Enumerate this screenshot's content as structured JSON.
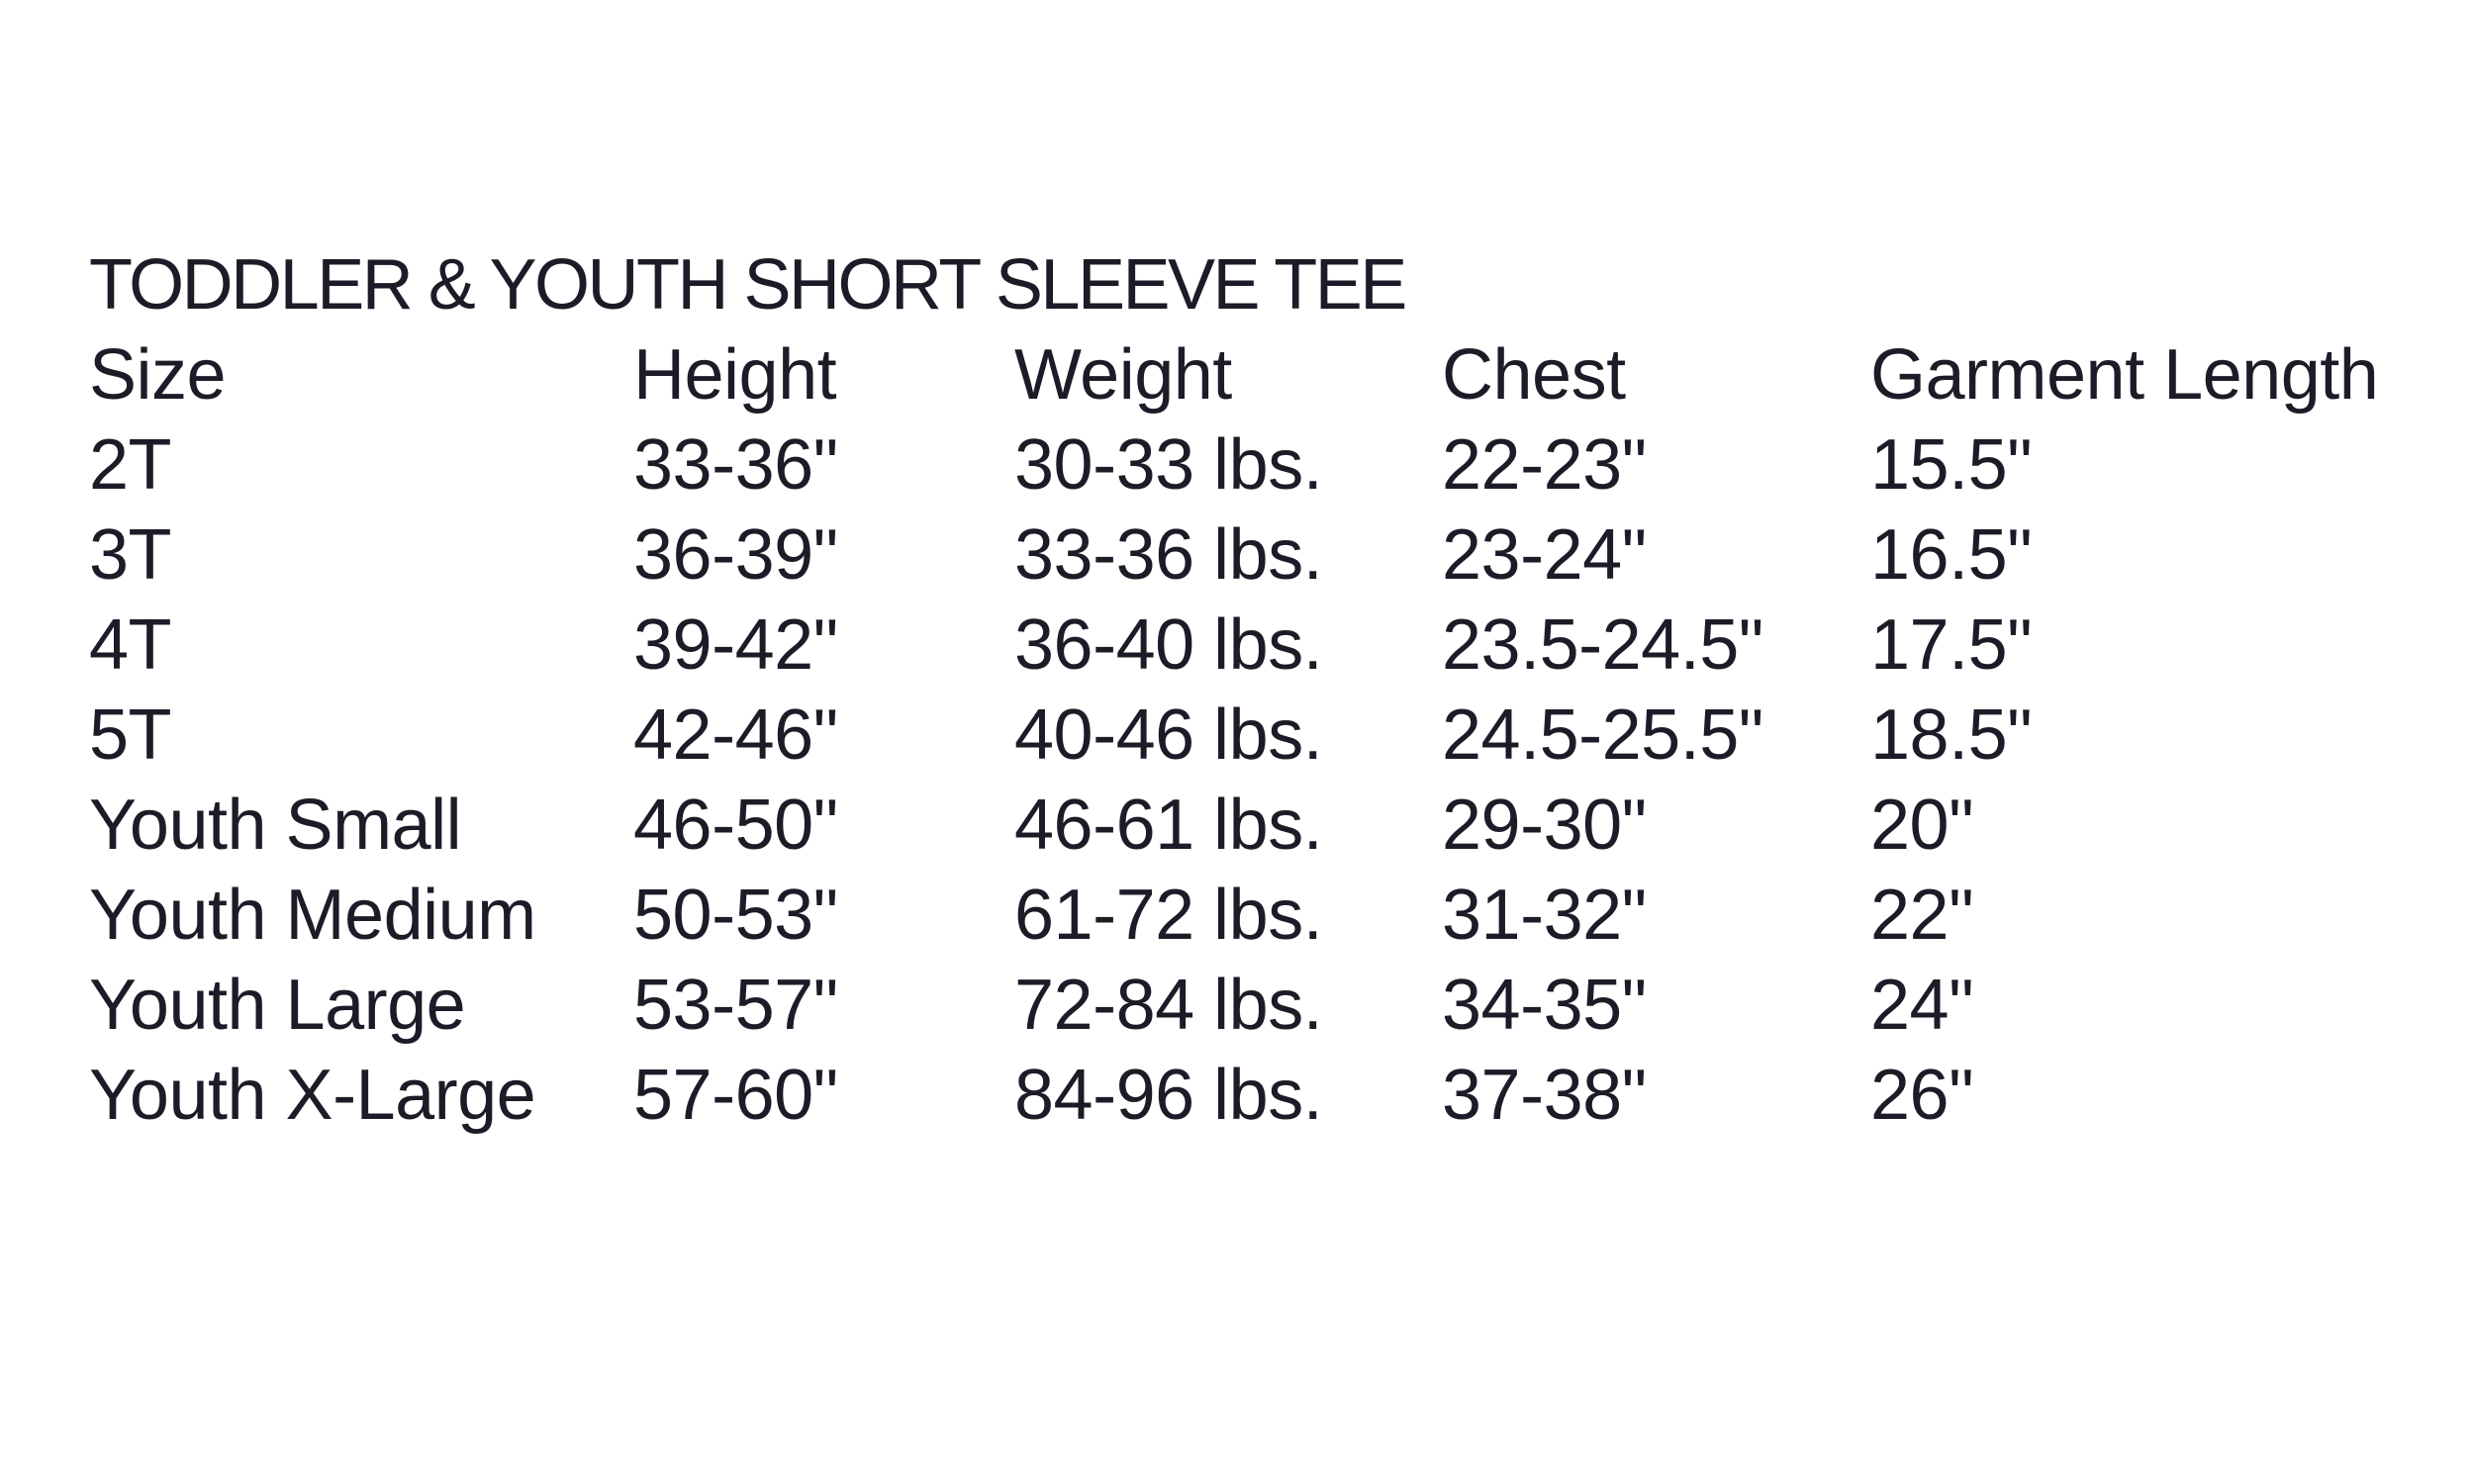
{
  "title": "TODDLER & YOUTH SHORT SLEEVE TEE",
  "colors": {
    "text": "#1d1b27",
    "background": "#ffffff"
  },
  "table": {
    "headers": [
      "Size",
      "Height",
      "Weight",
      "Chest",
      "Garment Length"
    ],
    "rows": [
      [
        "2T",
        "33-36\"",
        "30-33 lbs.",
        "22-23\"",
        "15.5\""
      ],
      [
        "3T",
        "36-39\"",
        "33-36 lbs.",
        "23-24\"",
        "16.5\""
      ],
      [
        "4T",
        "39-42\"",
        "36-40 lbs.",
        "23.5-24.5\"",
        "17.5\""
      ],
      [
        "5T",
        "42-46\"",
        "40-46 lbs.",
        "24.5-25.5\"",
        "18.5\""
      ],
      [
        "Youth Small",
        "46-50\"",
        "46-61 lbs.",
        "29-30\"",
        "20\""
      ],
      [
        "Youth Medium",
        "50-53\"",
        "61-72 lbs.",
        "31-32\"",
        "22\""
      ],
      [
        "Youth Large",
        "53-57\"",
        "72-84 lbs.",
        "34-35\"",
        "24\""
      ],
      [
        "Youth X-Large",
        "57-60\"",
        "84-96 lbs.",
        "37-38\"",
        "26\""
      ]
    ]
  }
}
